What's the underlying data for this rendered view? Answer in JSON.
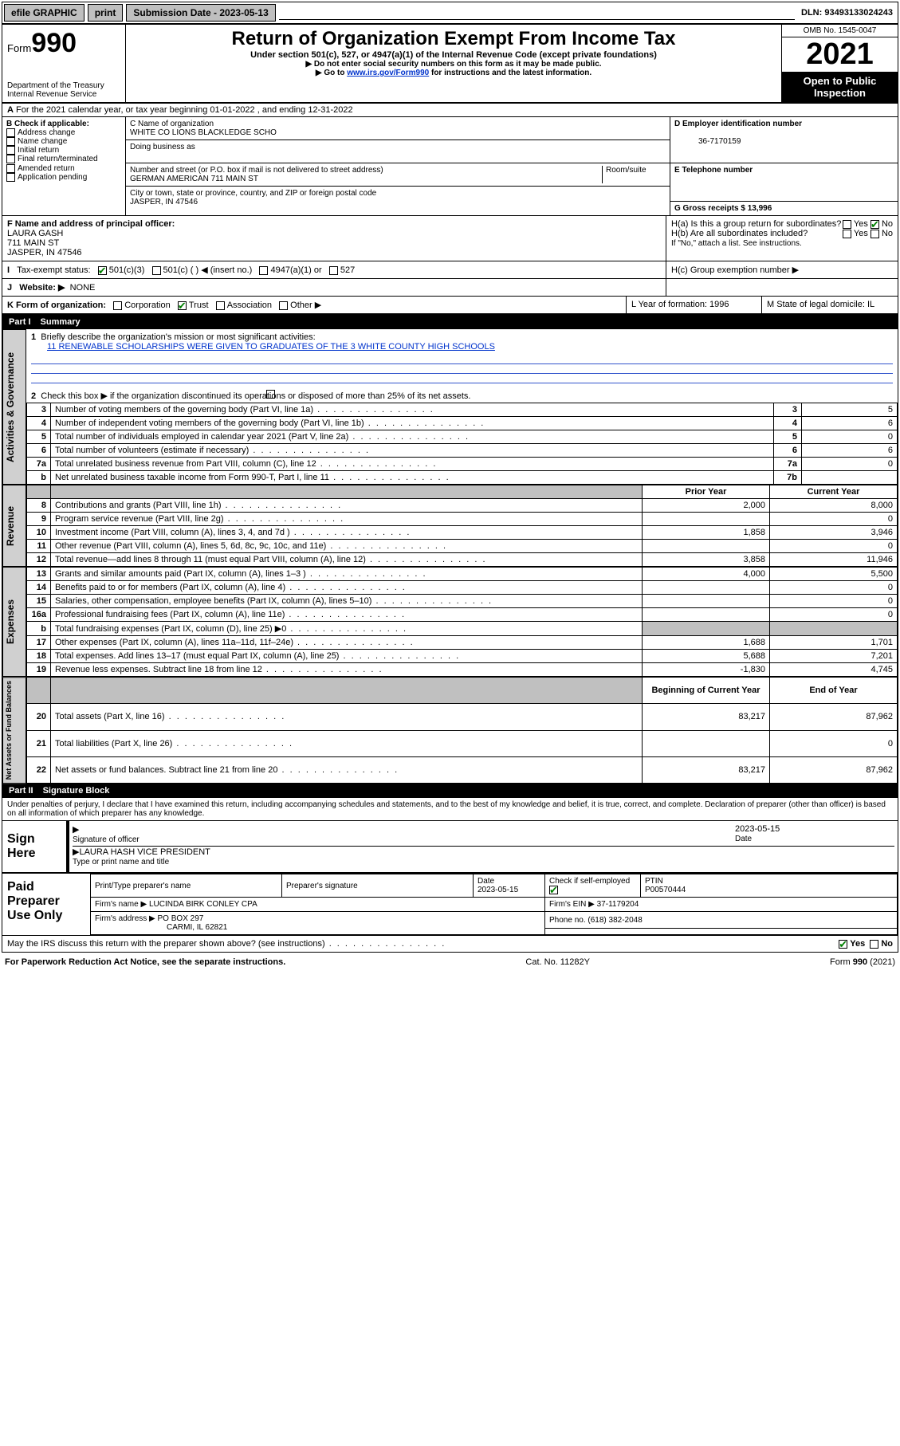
{
  "topbar": {
    "efile": "efile GRAPHIC",
    "print": "print",
    "subdate_label": "Submission Date - 2023-05-13",
    "dln": "DLN: 93493133024243"
  },
  "header": {
    "form_prefix": "Form",
    "form_no": "990",
    "dept": "Department of the Treasury",
    "irs": "Internal Revenue Service",
    "title": "Return of Organization Exempt From Income Tax",
    "sub1": "Under section 501(c), 527, or 4947(a)(1) of the Internal Revenue Code (except private foundations)",
    "sub2": "▶ Do not enter social security numbers on this form as it may be made public.",
    "sub3_pre": "▶ Go to ",
    "sub3_link": "www.irs.gov/Form990",
    "sub3_post": " for instructions and the latest information.",
    "omb": "OMB No. 1545-0047",
    "year": "2021",
    "open": "Open to Public Inspection"
  },
  "A": {
    "text": "For the 2021 calendar year, or tax year beginning 01-01-2022   , and ending 12-31-2022"
  },
  "B": {
    "label": "B Check if applicable:",
    "items": [
      "Address change",
      "Name change",
      "Initial return",
      "Final return/terminated",
      "Amended return",
      "Application pending"
    ]
  },
  "C": {
    "name_label": "C Name of organization",
    "name": "WHITE CO LIONS BLACKLEDGE SCHO",
    "dba_label": "Doing business as",
    "addr_label": "Number and street (or P.O. box if mail is not delivered to street address)",
    "room_label": "Room/suite",
    "addr": "GERMAN AMERICAN 711 MAIN ST",
    "city_label": "City or town, state or province, country, and ZIP or foreign postal code",
    "city": "JASPER, IN  47546"
  },
  "D": {
    "label": "D Employer identification number",
    "val": "36-7170159"
  },
  "E": {
    "label": "E Telephone number",
    "val": ""
  },
  "G": {
    "label": "G Gross receipts $ 13,996"
  },
  "F": {
    "label": "F  Name and address of principal officer:",
    "name": "LAURA GASH",
    "addr1": "711 MAIN ST",
    "addr2": "JASPER, IN  47546"
  },
  "H": {
    "a": "H(a)  Is this a group return for subordinates?",
    "b": "H(b)  Are all subordinates included?",
    "note": "If \"No,\" attach a list. See instructions.",
    "c": "H(c)  Group exemption number ▶",
    "yes": "Yes",
    "no": "No"
  },
  "I": {
    "label": "Tax-exempt status:",
    "opts": [
      "501(c)(3)",
      "501(c) (  ) ◀ (insert no.)",
      "4947(a)(1) or",
      "527"
    ]
  },
  "J": {
    "label": "Website: ▶",
    "val": "NONE"
  },
  "K": {
    "label": "K Form of organization:",
    "opts": [
      "Corporation",
      "Trust",
      "Association",
      "Other ▶"
    ]
  },
  "L": {
    "label": "L Year of formation: 1996"
  },
  "M": {
    "label": "M State of legal domicile: IL"
  },
  "part1": {
    "num": "Part I",
    "title": "Summary"
  },
  "summary": {
    "l1": "Briefly describe the organization's mission or most significant activities:",
    "mission": "11 RENEWABLE SCHOLARSHIPS WERE GIVEN TO GRADUATES OF THE 3 WHITE COUNTY HIGH SCHOOLS",
    "l2": "Check this box ▶        if the organization discontinued its operations or disposed of more than 25% of its net assets.",
    "rows_gov": [
      {
        "n": "3",
        "d": "Number of voting members of the governing body (Part VI, line 1a)",
        "box": "3",
        "v": "5"
      },
      {
        "n": "4",
        "d": "Number of independent voting members of the governing body (Part VI, line 1b)",
        "box": "4",
        "v": "6"
      },
      {
        "n": "5",
        "d": "Total number of individuals employed in calendar year 2021 (Part V, line 2a)",
        "box": "5",
        "v": "0"
      },
      {
        "n": "6",
        "d": "Total number of volunteers (estimate if necessary)",
        "box": "6",
        "v": "6"
      },
      {
        "n": "7a",
        "d": "Total unrelated business revenue from Part VIII, column (C), line 12",
        "box": "7a",
        "v": "0"
      },
      {
        "n": "b",
        "d": "Net unrelated business taxable income from Form 990-T, Part I, line 11",
        "box": "7b",
        "v": ""
      }
    ],
    "col_prior": "Prior Year",
    "col_curr": "Current Year",
    "rev": [
      {
        "n": "8",
        "d": "Contributions and grants (Part VIII, line 1h)",
        "p": "2,000",
        "c": "8,000"
      },
      {
        "n": "9",
        "d": "Program service revenue (Part VIII, line 2g)",
        "p": "",
        "c": "0"
      },
      {
        "n": "10",
        "d": "Investment income (Part VIII, column (A), lines 3, 4, and 7d )",
        "p": "1,858",
        "c": "3,946"
      },
      {
        "n": "11",
        "d": "Other revenue (Part VIII, column (A), lines 5, 6d, 8c, 9c, 10c, and 11e)",
        "p": "",
        "c": "0"
      },
      {
        "n": "12",
        "d": "Total revenue—add lines 8 through 11 (must equal Part VIII, column (A), line 12)",
        "p": "3,858",
        "c": "11,946"
      }
    ],
    "exp": [
      {
        "n": "13",
        "d": "Grants and similar amounts paid (Part IX, column (A), lines 1–3 )",
        "p": "4,000",
        "c": "5,500"
      },
      {
        "n": "14",
        "d": "Benefits paid to or for members (Part IX, column (A), line 4)",
        "p": "",
        "c": "0"
      },
      {
        "n": "15",
        "d": "Salaries, other compensation, employee benefits (Part IX, column (A), lines 5–10)",
        "p": "",
        "c": "0"
      },
      {
        "n": "16a",
        "d": "Professional fundraising fees (Part IX, column (A), line 11e)",
        "p": "",
        "c": "0"
      },
      {
        "n": "b",
        "d": "Total fundraising expenses (Part IX, column (D), line 25) ▶0",
        "p": "shade",
        "c": "shade"
      },
      {
        "n": "17",
        "d": "Other expenses (Part IX, column (A), lines 11a–11d, 11f–24e)",
        "p": "1,688",
        "c": "1,701"
      },
      {
        "n": "18",
        "d": "Total expenses. Add lines 13–17 (must equal Part IX, column (A), line 25)",
        "p": "5,688",
        "c": "7,201"
      },
      {
        "n": "19",
        "d": "Revenue less expenses. Subtract line 18 from line 12",
        "p": "-1,830",
        "c": "4,745"
      }
    ],
    "col_begin": "Beginning of Current Year",
    "col_end": "End of Year",
    "net": [
      {
        "n": "20",
        "d": "Total assets (Part X, line 16)",
        "p": "83,217",
        "c": "87,962"
      },
      {
        "n": "21",
        "d": "Total liabilities (Part X, line 26)",
        "p": "",
        "c": "0"
      },
      {
        "n": "22",
        "d": "Net assets or fund balances. Subtract line 21 from line 20",
        "p": "83,217",
        "c": "87,962"
      }
    ],
    "tabs": {
      "gov": "Activities & Governance",
      "rev": "Revenue",
      "exp": "Expenses",
      "net": "Net Assets or Fund Balances"
    }
  },
  "part2": {
    "num": "Part II",
    "title": "Signature Block"
  },
  "sig": {
    "decl": "Under penalties of perjury, I declare that I have examined this return, including accompanying schedules and statements, and to the best of my knowledge and belief, it is true, correct, and complete. Declaration of preparer (other than officer) is based on all information of which preparer has any knowledge.",
    "here": "Sign Here",
    "off_sig": "Signature of officer",
    "date_label": "Date",
    "date": "2023-05-15",
    "off_name": "LAURA HASH  VICE PRESIDENT",
    "off_name_label": "Type or print name and title"
  },
  "paid": {
    "label": "Paid Preparer Use Only",
    "h": [
      "Print/Type preparer's name",
      "Preparer's signature",
      "Date",
      "",
      "PTIN"
    ],
    "date": "2023-05-15",
    "check_label": "Check          if self-employed",
    "ptin": "P00570444",
    "firm_label": "Firm's name    ▶",
    "firm": "LUCINDA BIRK CONLEY CPA",
    "ein_label": "Firm's EIN ▶",
    "ein": "37-1179204",
    "addr_label": "Firm's address ▶",
    "addr1": "PO BOX 297",
    "addr2": "CARMI, IL  62821",
    "phone_label": "Phone no.",
    "phone": "(618) 382-2048",
    "discuss": "May the IRS discuss this return with the preparer shown above? (see instructions)",
    "yes": "Yes",
    "no": "No"
  },
  "footer": {
    "left": "For Paperwork Reduction Act Notice, see the separate instructions.",
    "mid": "Cat. No. 11282Y",
    "right": "Form 990 (2021)"
  },
  "colors": {
    "link": "#0033cc",
    "check": "#008000"
  }
}
